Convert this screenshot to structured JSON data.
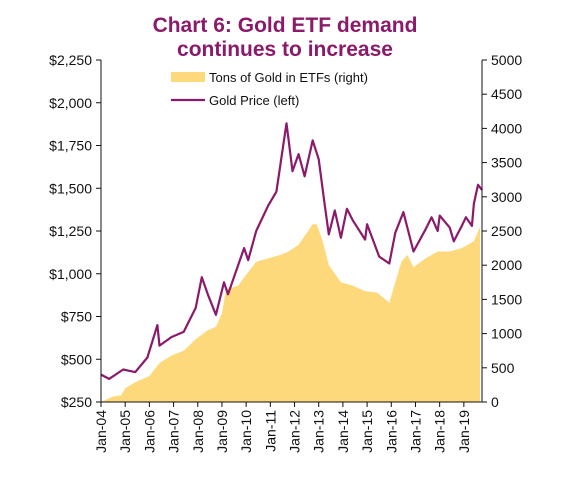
{
  "title": {
    "line1": "Chart 6: Gold ETF demand",
    "line2": "continues to increase"
  },
  "colors": {
    "title": "#8b1a6b",
    "etf_area": "#fdd97b",
    "gold_line": "#8b1a6b",
    "axis": "#111111"
  },
  "legend": {
    "position": "top-center"
  },
  "chart_data": {
    "type": "line",
    "title": "Chart 6: Gold ETF demand continues to increase",
    "x_type": "date",
    "xlim": [
      "2004-01",
      "2019-10"
    ],
    "x_ticks": [
      "Jan-04",
      "Jan-05",
      "Jan-06",
      "Jan-07",
      "Jan-08",
      "Jan-09",
      "Jan-10",
      "Jan-11",
      "Jan-12",
      "Jan-13",
      "Jan-14",
      "Jan-15",
      "Jan-16",
      "Jan-17",
      "Jan-18",
      "Jan-19"
    ],
    "y_left": {
      "ylim": [
        250,
        2250
      ],
      "ticks": [
        250,
        500,
        750,
        1000,
        1250,
        1500,
        1750,
        2000,
        2250
      ],
      "tick_labels": [
        "$250",
        "$500",
        "$750",
        "$1,000",
        "$1,250",
        "$1,500",
        "$1,750",
        "$2,000",
        "$2,250"
      ]
    },
    "y_right": {
      "ylim": [
        0,
        5000
      ],
      "ticks": [
        0,
        500,
        1000,
        1500,
        2000,
        2500,
        3000,
        3500,
        4000,
        4500,
        5000
      ],
      "tick_labels": [
        "0",
        "500",
        "1000",
        "1500",
        "2000",
        "2500",
        "3000",
        "3500",
        "4000",
        "4500",
        "5000"
      ]
    },
    "series": [
      {
        "name": "Tons of Gold in ETFs (right)",
        "type": "area",
        "axis": "right",
        "points": [
          [
            "2004-01",
            0
          ],
          [
            "2004-07",
            80
          ],
          [
            "2004-11",
            100
          ],
          [
            "2005-01",
            200
          ],
          [
            "2005-06",
            290
          ],
          [
            "2006-01",
            380
          ],
          [
            "2006-06",
            570
          ],
          [
            "2006-12",
            680
          ],
          [
            "2007-06",
            750
          ],
          [
            "2007-12",
            920
          ],
          [
            "2008-06",
            1050
          ],
          [
            "2008-10",
            1100
          ],
          [
            "2009-01",
            1300
          ],
          [
            "2009-03",
            1650
          ],
          [
            "2009-09",
            1700
          ],
          [
            "2009-12",
            1820
          ],
          [
            "2010-06",
            2050
          ],
          [
            "2010-12",
            2100
          ],
          [
            "2011-06",
            2150
          ],
          [
            "2011-10",
            2200
          ],
          [
            "2012-03",
            2300
          ],
          [
            "2012-10",
            2600
          ],
          [
            "2012-12",
            2600
          ],
          [
            "2013-03",
            2350
          ],
          [
            "2013-06",
            2000
          ],
          [
            "2013-12",
            1750
          ],
          [
            "2014-06",
            1700
          ],
          [
            "2014-12",
            1620
          ],
          [
            "2015-06",
            1600
          ],
          [
            "2015-12",
            1450
          ],
          [
            "2016-02",
            1650
          ],
          [
            "2016-06",
            2050
          ],
          [
            "2016-09",
            2150
          ],
          [
            "2016-12",
            1970
          ],
          [
            "2017-06",
            2100
          ],
          [
            "2017-12",
            2200
          ],
          [
            "2018-06",
            2200
          ],
          [
            "2018-12",
            2250
          ],
          [
            "2019-06",
            2350
          ],
          [
            "2019-09",
            2560
          ]
        ]
      },
      {
        "name": "Gold Price (left)",
        "type": "line",
        "axis": "left",
        "points": [
          [
            "2004-01",
            410
          ],
          [
            "2004-05",
            385
          ],
          [
            "2004-12",
            440
          ],
          [
            "2005-06",
            425
          ],
          [
            "2005-12",
            510
          ],
          [
            "2006-05",
            700
          ],
          [
            "2006-06",
            580
          ],
          [
            "2006-12",
            630
          ],
          [
            "2007-06",
            660
          ],
          [
            "2007-12",
            800
          ],
          [
            "2008-03",
            980
          ],
          [
            "2008-06",
            880
          ],
          [
            "2008-10",
            760
          ],
          [
            "2009-02",
            950
          ],
          [
            "2009-04",
            880
          ],
          [
            "2009-12",
            1150
          ],
          [
            "2010-02",
            1080
          ],
          [
            "2010-06",
            1250
          ],
          [
            "2010-12",
            1400
          ],
          [
            "2011-04",
            1480
          ],
          [
            "2011-09",
            1880
          ],
          [
            "2011-12",
            1600
          ],
          [
            "2012-03",
            1700
          ],
          [
            "2012-06",
            1570
          ],
          [
            "2012-10",
            1780
          ],
          [
            "2013-01",
            1670
          ],
          [
            "2013-04",
            1400
          ],
          [
            "2013-06",
            1230
          ],
          [
            "2013-09",
            1370
          ],
          [
            "2013-12",
            1210
          ],
          [
            "2014-03",
            1380
          ],
          [
            "2014-06",
            1310
          ],
          [
            "2014-12",
            1200
          ],
          [
            "2015-01",
            1290
          ],
          [
            "2015-07",
            1100
          ],
          [
            "2015-12",
            1060
          ],
          [
            "2016-03",
            1240
          ],
          [
            "2016-07",
            1360
          ],
          [
            "2016-12",
            1130
          ],
          [
            "2017-06",
            1260
          ],
          [
            "2017-09",
            1330
          ],
          [
            "2017-12",
            1250
          ],
          [
            "2018-01",
            1340
          ],
          [
            "2018-06",
            1270
          ],
          [
            "2018-08",
            1190
          ],
          [
            "2018-12",
            1280
          ],
          [
            "2019-02",
            1330
          ],
          [
            "2019-05",
            1280
          ],
          [
            "2019-06",
            1410
          ],
          [
            "2019-08",
            1520
          ],
          [
            "2019-10",
            1490
          ]
        ]
      }
    ]
  }
}
